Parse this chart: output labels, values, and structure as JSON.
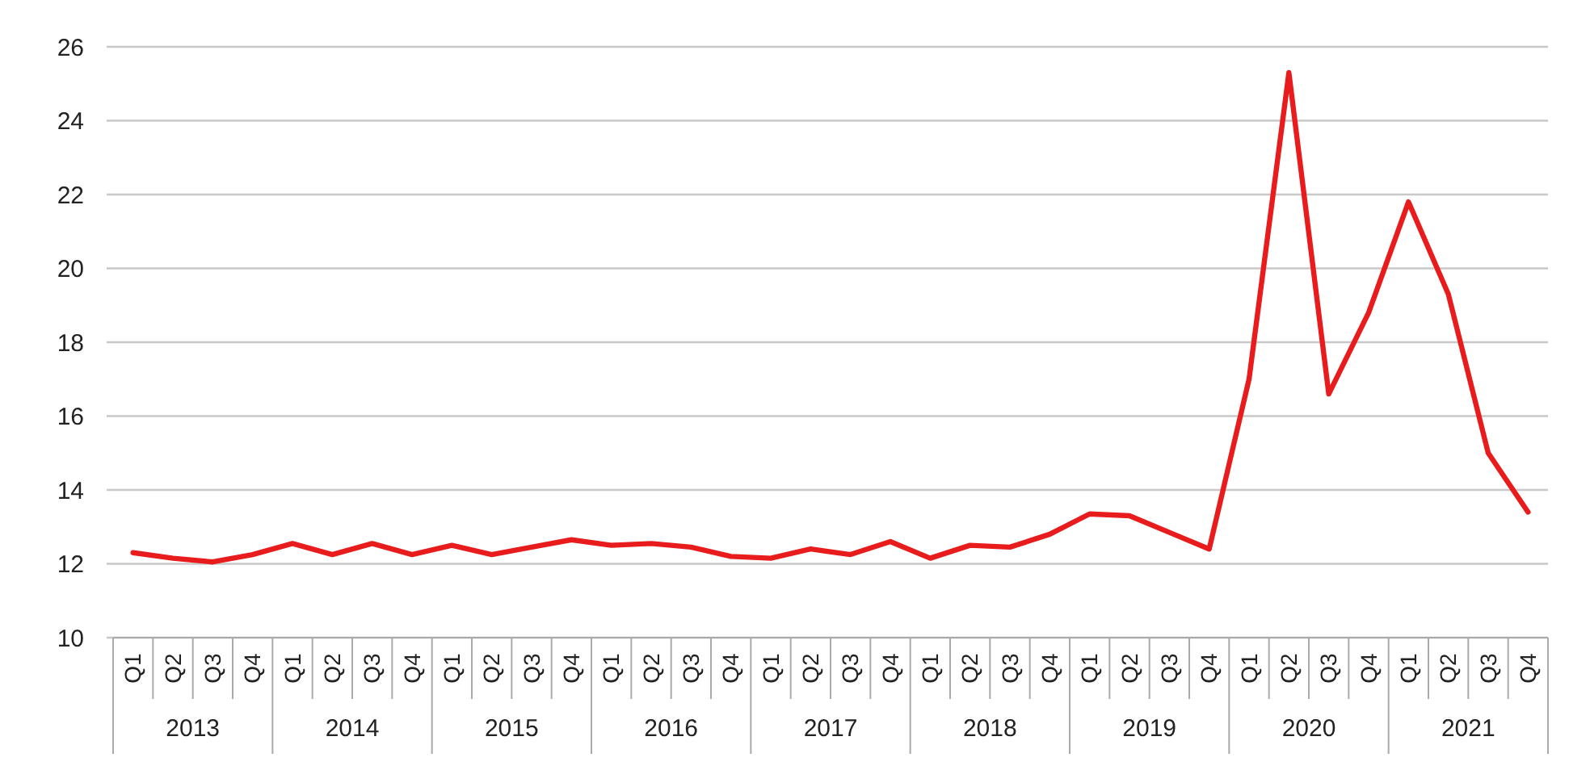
{
  "chart_data": {
    "type": "line",
    "categories": [
      "Q1",
      "Q2",
      "Q3",
      "Q4",
      "Q1",
      "Q2",
      "Q3",
      "Q4",
      "Q1",
      "Q2",
      "Q3",
      "Q4",
      "Q1",
      "Q2",
      "Q3",
      "Q4",
      "Q1",
      "Q2",
      "Q3",
      "Q4",
      "Q1",
      "Q2",
      "Q3",
      "Q4",
      "Q1",
      "Q2",
      "Q3",
      "Q4",
      "Q1",
      "Q2",
      "Q3",
      "Q4",
      "Q1",
      "Q2",
      "Q3",
      "Q4"
    ],
    "series": [
      {
        "color": "#e81c1c",
        "values": [
          12.3,
          12.15,
          12.05,
          12.25,
          12.55,
          12.25,
          12.55,
          12.25,
          12.5,
          12.25,
          12.45,
          12.65,
          12.5,
          12.55,
          12.45,
          12.2,
          12.15,
          12.4,
          12.25,
          12.6,
          12.15,
          12.5,
          12.45,
          12.8,
          13.35,
          13.3,
          12.85,
          12.4,
          17.0,
          25.3,
          16.6,
          18.8,
          21.8,
          19.3,
          15.0,
          13.4
        ]
      }
    ],
    "annotations": [
      "2013",
      "2014",
      "2015",
      "2016",
      "2017",
      "2018",
      "2019",
      "2020",
      "2021"
    ],
    "ylim": [
      10,
      26
    ],
    "yticks": [
      10,
      12,
      14,
      16,
      18,
      20,
      22,
      24,
      26
    ],
    "grid": "y",
    "marker": "none",
    "line_style": "solid"
  }
}
